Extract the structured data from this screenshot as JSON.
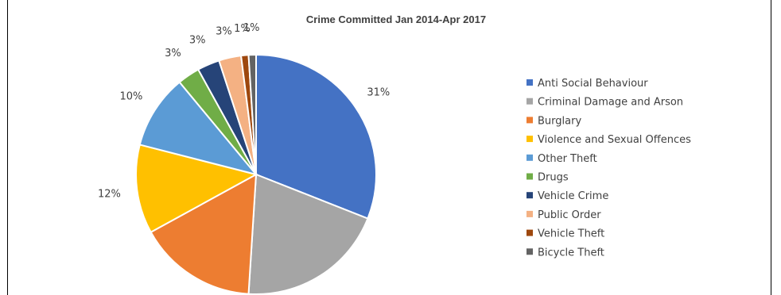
{
  "chart_data": {
    "type": "pie",
    "title": "Crime Committed Jan 2014-Apr 2017",
    "start_angle_deg": 0,
    "direction": "clockwise",
    "legend_placement": "right",
    "categories": [
      "Anti Social Behaviour",
      "Criminal Damage and Arson",
      "Burglary",
      "Violence and Sexual Offences",
      "Other Theft",
      "Drugs",
      "Vehicle Crime",
      "Public Order",
      "Vehicle Theft",
      "Bicycle Theft"
    ],
    "values": [
      31,
      20,
      16,
      12,
      10,
      3,
      3,
      3,
      1,
      1
    ],
    "labels": [
      "31%",
      "20%",
      "16%",
      "12%",
      "10%",
      "3%",
      "3%",
      "3%",
      "1%",
      "1%"
    ],
    "colors": [
      "#4472C4",
      "#A5A5A5",
      "#ED7D31",
      "#FFC000",
      "#5B9BD5",
      "#70AD47",
      "#264478",
      "#F4B183",
      "#9E480E",
      "#636363"
    ]
  }
}
